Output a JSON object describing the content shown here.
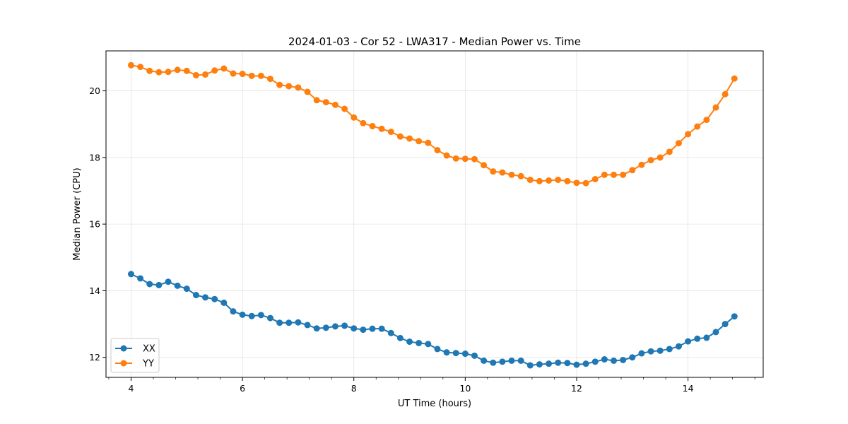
{
  "chart_data": {
    "type": "line",
    "title": "2024-01-03 - Cor 52 - LWA317 - Median Power vs. Time",
    "xlabel": "UT Time (hours)",
    "ylabel": "Median Power (CPU)",
    "xlim": [
      3.55,
      15.35
    ],
    "ylim": [
      11.4,
      21.2
    ],
    "xticks": [
      4,
      6,
      8,
      10,
      12,
      14
    ],
    "yticks": [
      12,
      14,
      16,
      18,
      20
    ],
    "grid": true,
    "legend_position": "lower-left",
    "x": [
      4.0,
      4.1667,
      4.3333,
      4.5,
      4.6667,
      4.8333,
      5.0,
      5.1667,
      5.3333,
      5.5,
      5.6667,
      5.8333,
      6.0,
      6.1667,
      6.3333,
      6.5,
      6.6667,
      6.8333,
      7.0,
      7.1667,
      7.3333,
      7.5,
      7.6667,
      7.8333,
      8.0,
      8.1667,
      8.3333,
      8.5,
      8.6667,
      8.8333,
      9.0,
      9.1667,
      9.3333,
      9.5,
      9.6667,
      9.8333,
      10.0,
      10.1667,
      10.3333,
      10.5,
      10.6667,
      10.8333,
      11.0,
      11.1667,
      11.3333,
      11.5,
      11.6667,
      11.8333,
      12.0,
      12.1667,
      12.3333,
      12.5,
      12.6667,
      12.8333,
      13.0,
      13.1667,
      13.3333,
      13.5,
      13.6667,
      13.8333,
      14.0,
      14.1667,
      14.3333,
      14.5,
      14.6667,
      14.8333
    ],
    "series": [
      {
        "name": "XX",
        "color": "#1f77b4",
        "values": [
          14.5,
          14.37,
          14.2,
          14.17,
          14.27,
          14.15,
          14.06,
          13.87,
          13.8,
          13.75,
          13.64,
          13.38,
          13.28,
          13.24,
          13.27,
          13.18,
          13.04,
          13.04,
          13.05,
          12.97,
          12.87,
          12.89,
          12.93,
          12.95,
          12.87,
          12.83,
          12.86,
          12.86,
          12.73,
          12.58,
          12.47,
          12.43,
          12.4,
          12.25,
          12.15,
          12.13,
          12.11,
          12.05,
          11.9,
          11.84,
          11.87,
          11.9,
          11.9,
          11.76,
          11.79,
          11.81,
          11.84,
          11.83,
          11.78,
          11.81,
          11.87,
          11.94,
          11.9,
          11.92,
          12.0,
          12.12,
          12.18,
          12.2,
          12.25,
          12.33,
          12.48,
          12.56,
          12.59,
          12.76,
          13.0,
          13.23
        ]
      },
      {
        "name": "YY",
        "color": "#ff7f0e",
        "values": [
          20.77,
          20.72,
          20.6,
          20.56,
          20.57,
          20.63,
          20.6,
          20.47,
          20.49,
          20.61,
          20.67,
          20.52,
          20.51,
          20.45,
          20.45,
          20.36,
          20.18,
          20.14,
          20.1,
          19.97,
          19.72,
          19.66,
          19.58,
          19.46,
          19.2,
          19.03,
          18.94,
          18.86,
          18.77,
          18.63,
          18.57,
          18.49,
          18.44,
          18.22,
          18.06,
          17.97,
          17.96,
          17.95,
          17.77,
          17.58,
          17.55,
          17.48,
          17.44,
          17.33,
          17.29,
          17.31,
          17.33,
          17.29,
          17.24,
          17.23,
          17.35,
          17.48,
          17.48,
          17.48,
          17.62,
          17.78,
          17.92,
          18.0,
          18.17,
          18.43,
          18.7,
          18.93,
          19.13,
          19.5,
          19.9,
          20.37
        ]
      }
    ]
  }
}
